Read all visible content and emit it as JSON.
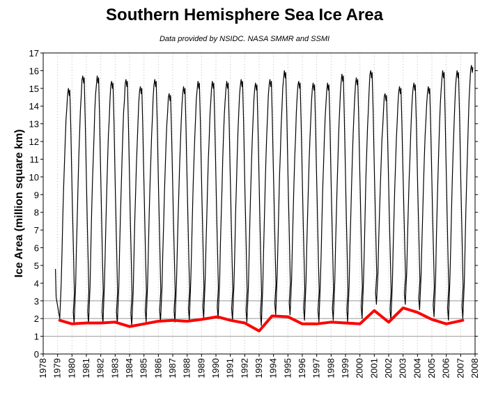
{
  "chart_data": {
    "type": "line",
    "title": "Southern Hemisphere Sea Ice Area",
    "subtitle": "Data provided by NSIDC. NASA SMMR and SSMI",
    "xlabel": "",
    "ylabel": "Ice Area (million square km)",
    "xlim": [
      1978,
      2008
    ],
    "ylim": [
      0,
      17
    ],
    "x_ticks": [
      "1978",
      "1979",
      "1980",
      "1981",
      "1982",
      "1983",
      "1984",
      "1985",
      "1986",
      "1987",
      "1988",
      "1989",
      "1990",
      "1991",
      "1992",
      "1993",
      "1994",
      "1995",
      "1996",
      "1997",
      "1998",
      "1999",
      "2000",
      "2001",
      "2002",
      "2003",
      "2004",
      "2005",
      "2006",
      "2007",
      "2008"
    ],
    "y_ticks": [
      "0",
      "1",
      "2",
      "3",
      "4",
      "5",
      "6",
      "7",
      "8",
      "9",
      "10",
      "11",
      "12",
      "13",
      "14",
      "15",
      "16",
      "17"
    ],
    "reference_lines": [
      1.0,
      2.0,
      3.0
    ],
    "grid": "vertical dotted",
    "colors": {
      "seasonal": "#000000",
      "minimum": "#ff0000",
      "reference": "#999999",
      "grid": "#bbbbbb"
    },
    "series": [
      {
        "role": "seasonal",
        "start": 1978.85,
        "start_value": 4.8,
        "annual_max": [
          15.0,
          15.7,
          15.7,
          15.4,
          15.5,
          15.1,
          15.5,
          14.7,
          15.1,
          15.4,
          15.4,
          15.4,
          15.5,
          15.3,
          15.5,
          16.0,
          15.4,
          15.3,
          15.3,
          15.8,
          15.6,
          16.0,
          14.7,
          15.1,
          15.3,
          15.1,
          16.0,
          16.0,
          16.3
        ],
        "annual_min": [
          2.0,
          1.7,
          1.7,
          1.7,
          1.7,
          1.6,
          1.8,
          1.8,
          1.8,
          1.9,
          2.0,
          2.0,
          1.9,
          1.8,
          1.6,
          2.2,
          2.2,
          1.9,
          1.8,
          1.9,
          1.8,
          2.0,
          2.8,
          1.9,
          2.8,
          2.5,
          2.1,
          1.9,
          2.0
        ]
      },
      {
        "role": "minimum",
        "x": [
          1979.15,
          1980.0,
          1981.0,
          1982.0,
          1983.0,
          1984.0,
          1985.0,
          1986.0,
          1987.0,
          1988.0,
          1989.0,
          1990.1,
          1991.0,
          1992.0,
          1993.0,
          1993.9,
          1995.0,
          1996.0,
          1997.0,
          1998.0,
          1999.0,
          2000.0,
          2001.0,
          2002.0,
          2003.0,
          2004.0,
          2005.0,
          2006.0,
          2007.15
        ],
        "values": [
          1.9,
          1.7,
          1.75,
          1.75,
          1.8,
          1.55,
          1.7,
          1.85,
          1.9,
          1.85,
          1.95,
          2.1,
          1.9,
          1.75,
          1.3,
          2.15,
          2.1,
          1.7,
          1.7,
          1.8,
          1.75,
          1.7,
          2.45,
          1.8,
          2.6,
          2.35,
          1.95,
          1.7,
          1.9
        ]
      }
    ]
  }
}
